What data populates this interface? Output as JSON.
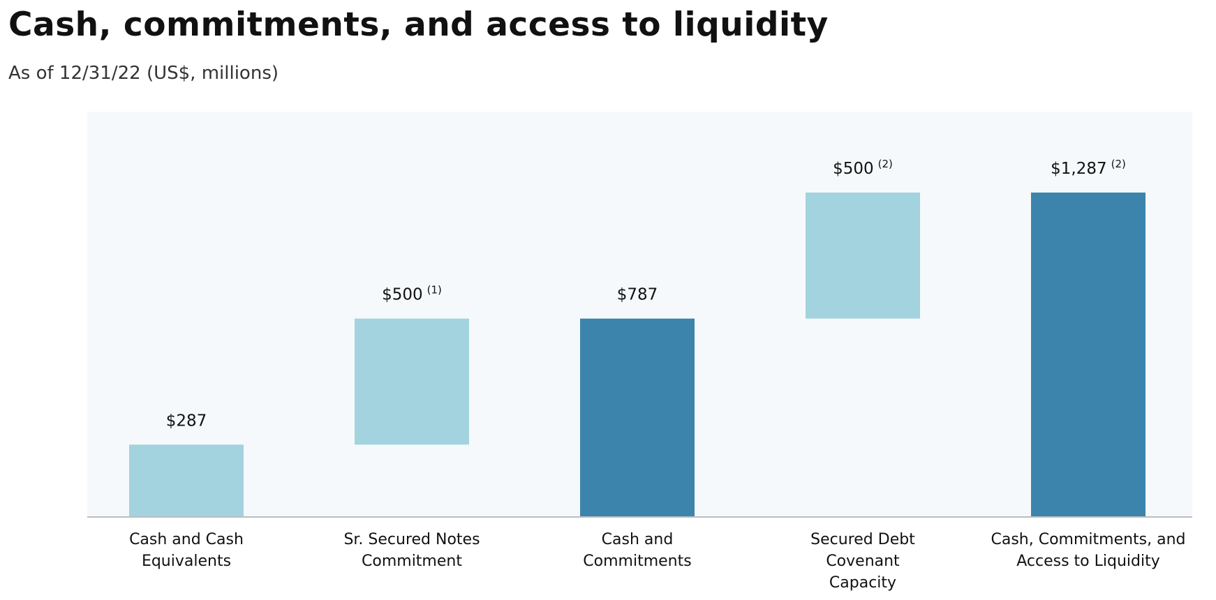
{
  "title": "Cash, commitments, and access to liquidity",
  "subtitle": "As of 12/31/22 (US$, millions)",
  "colors": {
    "light_bar": "#a3d3de",
    "dark_bar": "#3c84ab",
    "plot_background": "#f5f9fb",
    "axis": "#b9bec3"
  },
  "chart_data": {
    "type": "bar",
    "subtype": "waterfall",
    "title": "Cash, commitments, and access to liquidity",
    "subtitle": "As of 12/31/22 (US$, millions)",
    "xlabel": "",
    "ylabel": "",
    "ylim": [
      0,
      1287
    ],
    "grid": false,
    "legend": "none",
    "categories": [
      [
        "Cash and Cash",
        "Equivalents"
      ],
      [
        "Sr. Secured Notes",
        "Commitment"
      ],
      [
        "Cash and",
        "Commitments"
      ],
      [
        "Secured Debt",
        "Covenant",
        "Capacity"
      ],
      [
        "Cash, Commitments, and",
        "Access to Liquidity"
      ]
    ],
    "bars": [
      {
        "base": 0,
        "value": 287,
        "kind": "increment",
        "label": "$287",
        "footnote": ""
      },
      {
        "base": 287,
        "value": 500,
        "kind": "increment",
        "label": "$500",
        "footnote": "(1)"
      },
      {
        "base": 0,
        "value": 787,
        "kind": "total",
        "label": "$787",
        "footnote": ""
      },
      {
        "base": 787,
        "value": 500,
        "kind": "increment",
        "label": "$500",
        "footnote": "(2)"
      },
      {
        "base": 0,
        "value": 1287,
        "kind": "total",
        "label": "$1,287",
        "footnote": "(2)"
      }
    ]
  }
}
